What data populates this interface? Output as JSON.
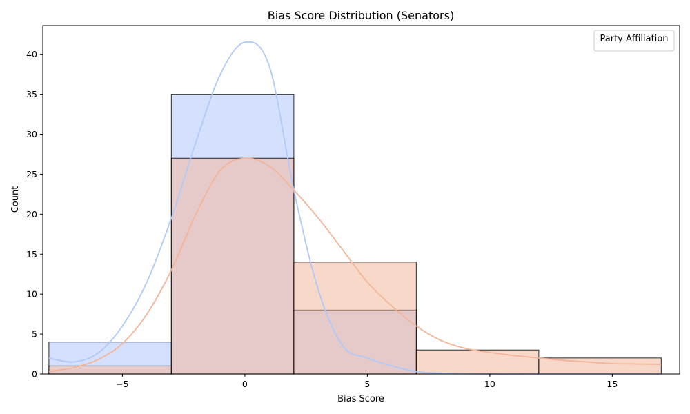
{
  "chart_data": {
    "type": "bar",
    "title": "Bias Score Distribution (Senators)",
    "xlabel": "Bias Score",
    "ylabel": "Count",
    "xlim": [
      -8.25,
      17.75
    ],
    "ylim": [
      0,
      43.6
    ],
    "xticks": [
      -5,
      0,
      5,
      10,
      15
    ],
    "yticks": [
      0,
      5,
      10,
      15,
      20,
      25,
      30,
      35,
      40
    ],
    "bin_edges": [
      -8,
      -3,
      2,
      7,
      12,
      17
    ],
    "legend": {
      "title": "Party Affiliation",
      "placement": "top-right"
    },
    "series": [
      {
        "values": [
          4,
          35,
          8,
          0,
          0
        ],
        "fill_color": "#d2defe",
        "line_color": "#aec9fa",
        "kde": {
          "x": [
            -8,
            -7,
            -6,
            -5,
            -4,
            -3,
            -2,
            -1,
            0,
            1,
            2,
            3,
            4,
            5,
            6,
            7,
            8,
            10,
            12,
            17
          ],
          "y": [
            2.0,
            1.5,
            2.6,
            6.0,
            11.5,
            19.5,
            29.0,
            37.5,
            41.5,
            38.5,
            23.0,
            10.5,
            3.5,
            2.0,
            1.0,
            0.3,
            0.1,
            0,
            0,
            0
          ]
        }
      },
      {
        "values": [
          1,
          27,
          14,
          3,
          2
        ],
        "fill_color": "#f3b89c",
        "line_color": "#f4b498",
        "kde": {
          "x": [
            -8,
            -7,
            -6,
            -5,
            -4,
            -3,
            -2,
            -1,
            0,
            1,
            2,
            3,
            4,
            5,
            6,
            7,
            8,
            9,
            10,
            11,
            12,
            13,
            14,
            15,
            16,
            17
          ],
          "y": [
            0.3,
            0.8,
            1.8,
            3.8,
            7.5,
            13.0,
            20.0,
            25.5,
            27.0,
            26.0,
            23.0,
            19.5,
            15.5,
            11.5,
            8.5,
            6.0,
            4.2,
            3.2,
            2.7,
            2.3,
            2.0,
            1.7,
            1.5,
            1.3,
            1.25,
            1.2
          ]
        }
      }
    ]
  }
}
